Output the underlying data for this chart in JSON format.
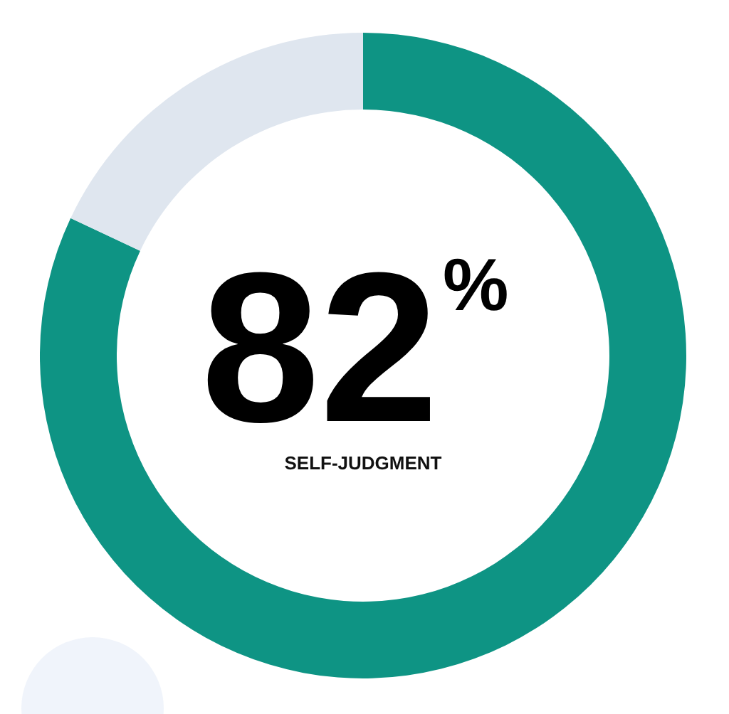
{
  "chart_data": {
    "type": "donut",
    "categories": [
      "SELF-JUDGMENT",
      null
    ],
    "values": [
      82,
      18
    ],
    "colors": [
      "#0e9484",
      "#dfe6ef"
    ],
    "value_labels": [
      "82$^{%}$",
      null
    ]
  }
}
